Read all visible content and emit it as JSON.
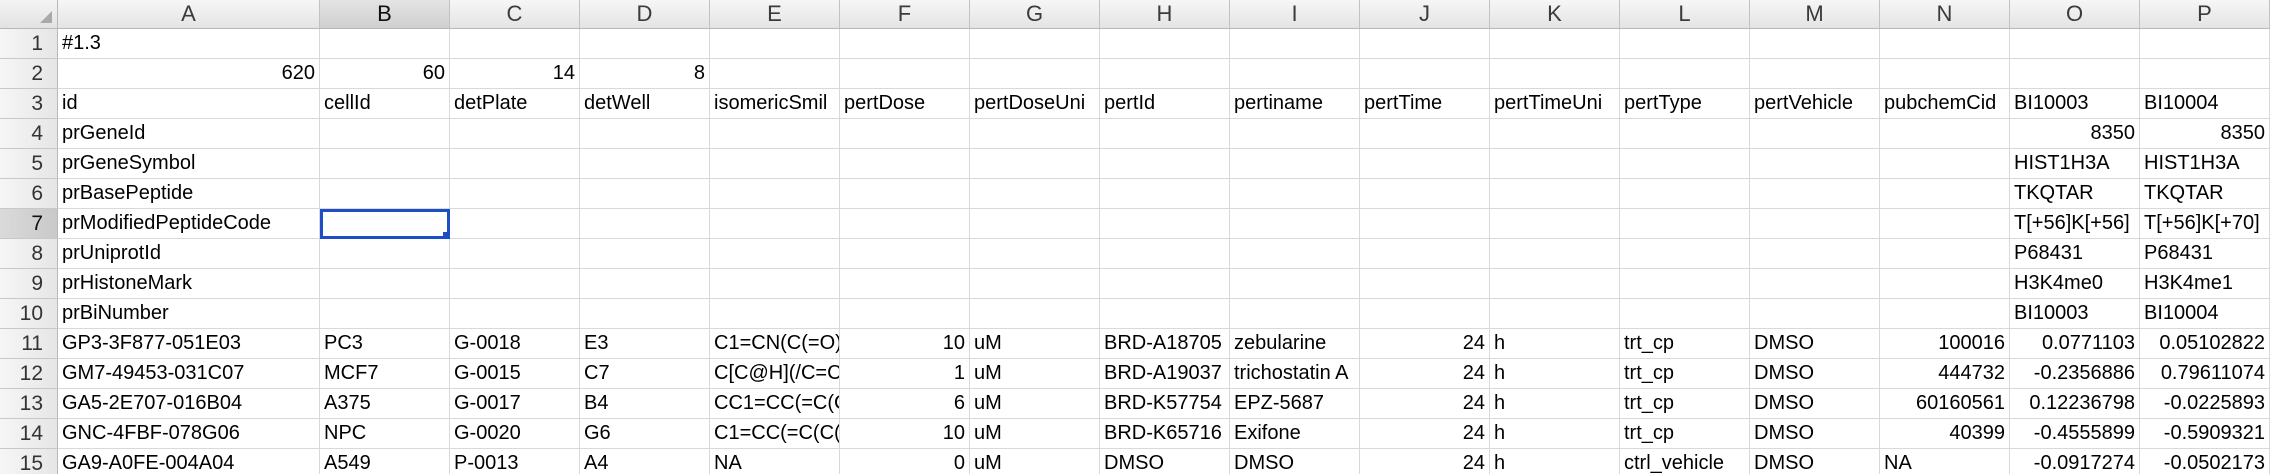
{
  "columns": [
    "A",
    "B",
    "C",
    "D",
    "E",
    "F",
    "G",
    "H",
    "I",
    "J",
    "K",
    "L",
    "M",
    "N",
    "O",
    "P"
  ],
  "selected_column": "B",
  "selected_row": "7",
  "active_cell": "B7",
  "rows": [
    {
      "num": "1",
      "cells": {
        "A": "#1.3"
      }
    },
    {
      "num": "2",
      "cells": {
        "A": "620",
        "B": "60",
        "C": "14",
        "D": "8"
      }
    },
    {
      "num": "3",
      "cells": {
        "A": "id",
        "B": "cellId",
        "C": "detPlate",
        "D": "detWell",
        "E": "isomericSmil",
        "F": "pertDose",
        "G": "pertDoseUni",
        "H": "pertId",
        "I": "pertiname",
        "J": "pertTime",
        "K": "pertTimeUni",
        "L": "pertType",
        "M": "pertVehicle",
        "N": "pubchemCid",
        "O": "BI10003",
        "P": "BI10004"
      }
    },
    {
      "num": "4",
      "cells": {
        "A": "prGeneId",
        "O": "8350",
        "P": "8350"
      }
    },
    {
      "num": "5",
      "cells": {
        "A": "prGeneSymbol",
        "O": "HIST1H3A",
        "P": "HIST1H3A"
      }
    },
    {
      "num": "6",
      "cells": {
        "A": "prBasePeptide",
        "O": "TKQTAR",
        "P": "TKQTAR"
      }
    },
    {
      "num": "7",
      "cells": {
        "A": "prModifiedPeptideCode",
        "O": "T[+56]K[+56]",
        "P": "T[+56]K[+70]"
      }
    },
    {
      "num": "8",
      "cells": {
        "A": "prUniprotId",
        "O": "P68431",
        "P": "P68431"
      }
    },
    {
      "num": "9",
      "cells": {
        "A": "prHistoneMark",
        "O": "H3K4me0",
        "P": "H3K4me1"
      }
    },
    {
      "num": "10",
      "cells": {
        "A": "prBiNumber",
        "O": "BI10003",
        "P": "BI10004"
      }
    },
    {
      "num": "11",
      "cells": {
        "A": "GP3-3F877-051E03",
        "B": "PC3",
        "C": "G-0018",
        "D": "E3",
        "E": "C1=CN(C(=O)",
        "F": "10",
        "G": "uM",
        "H": "BRD-A18705",
        "I": "zebularine",
        "J": "24",
        "K": "h",
        "L": "trt_cp",
        "M": "DMSO",
        "N": "100016",
        "O": "0.0771103",
        "P": "0.05102822"
      }
    },
    {
      "num": "12",
      "cells": {
        "A": "GM7-49453-031C07",
        "B": "MCF7",
        "C": "G-0015",
        "D": "C7",
        "E": "C[C@H](/C=C",
        "F": "1",
        "G": "uM",
        "H": "BRD-A19037",
        "I": "trichostatin A",
        "J": "24",
        "K": "h",
        "L": "trt_cp",
        "M": "DMSO",
        "N": "444732",
        "O": "-0.2356886",
        "P": "0.79611074"
      }
    },
    {
      "num": "13",
      "cells": {
        "A": "GA5-2E707-016B04",
        "B": "A375",
        "C": "G-0017",
        "D": "B4",
        "E": "CC1=CC(=C(C",
        "F": "6",
        "G": "uM",
        "H": "BRD-K57754",
        "I": "EPZ-5687",
        "J": "24",
        "K": "h",
        "L": "trt_cp",
        "M": "DMSO",
        "N": "60160561",
        "O": "0.12236798",
        "P": "-0.0225893"
      }
    },
    {
      "num": "14",
      "cells": {
        "A": "GNC-4FBF-078G06",
        "B": "NPC",
        "C": "G-0020",
        "D": "G6",
        "E": "C1=CC(=C(C(=",
        "F": "10",
        "G": "uM",
        "H": "BRD-K65716",
        "I": "Exifone",
        "J": "24",
        "K": "h",
        "L": "trt_cp",
        "M": "DMSO",
        "N": "40399",
        "O": "-0.4555899",
        "P": "-0.5909321"
      }
    },
    {
      "num": "15",
      "cells": {
        "A": "GA9-A0FE-004A04",
        "B": "A549",
        "C": "P-0013",
        "D": "A4",
        "E": "NA",
        "F": "0",
        "G": "uM",
        "H": "DMSO",
        "I": "DMSO",
        "J": "24",
        "K": "h",
        "L": "ctrl_vehicle",
        "M": "DMSO",
        "N": "NA",
        "O": "-0.0917274",
        "P": "-0.0502173"
      }
    }
  ]
}
